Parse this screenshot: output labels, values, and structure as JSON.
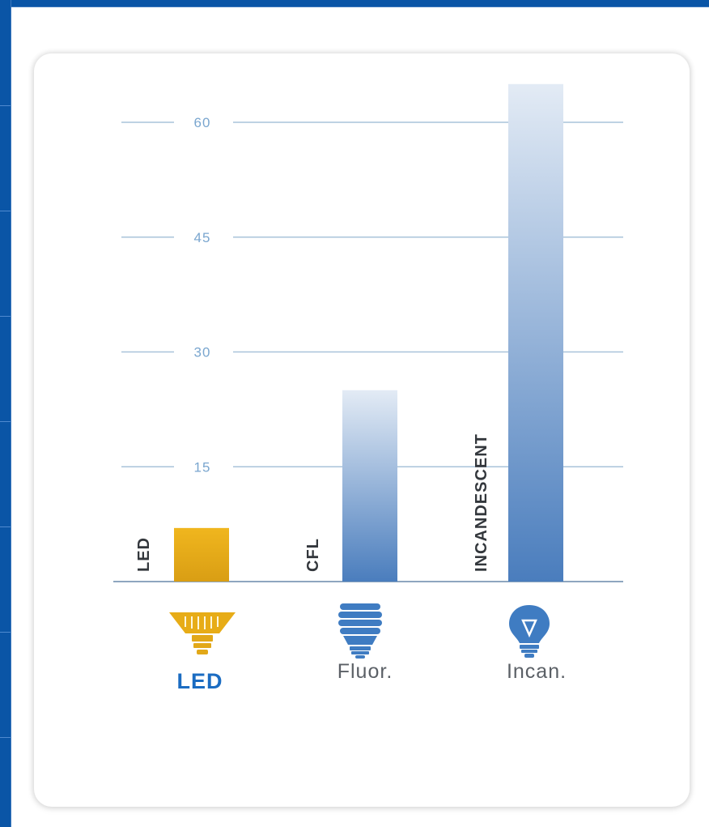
{
  "colors": {
    "frame_blue": "#0a55a6",
    "gridline": "#a9c3da",
    "tick_text": "#7aa6cf",
    "led_bar": "#e2a818",
    "bar_gradient_top": "#dfe8f3",
    "bar_gradient_bottom": "#4a7dbd",
    "led_label": "#1b6cc2",
    "category_label": "#5b6066"
  },
  "chart_data": {
    "type": "bar",
    "categories": [
      "LED",
      "CFL",
      "INCANDESCENT"
    ],
    "values": [
      7,
      25,
      65
    ],
    "title": "",
    "xlabel": "",
    "ylabel": "",
    "ylim": [
      0,
      65
    ],
    "yticks": [
      15,
      30,
      45,
      60
    ],
    "grid": true,
    "legend": "none"
  },
  "categories_below": [
    {
      "label": "LED",
      "icon": "led-bulb-icon",
      "highlighted": true
    },
    {
      "label": "Fluor.",
      "icon": "cfl-bulb-icon",
      "highlighted": false
    },
    {
      "label": "Incan.",
      "icon": "incandescent-bulb-icon",
      "highlighted": false
    }
  ]
}
